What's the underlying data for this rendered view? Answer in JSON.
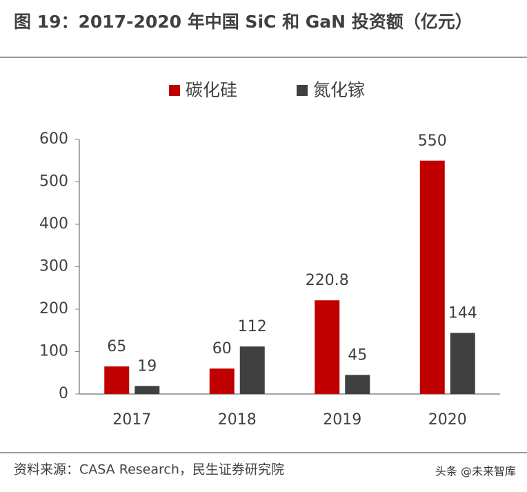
{
  "chart_data": {
    "type": "bar",
    "title": "图 19：2017-2020 年中国 SiC 和 GaN 投资额（亿元）",
    "categories": [
      "2017",
      "2018",
      "2019",
      "2020"
    ],
    "series": [
      {
        "name": "碳化硅",
        "color": "#c00000",
        "values": [
          65,
          60,
          220.8,
          550
        ]
      },
      {
        "name": "氮化镓",
        "color": "#404040",
        "values": [
          19,
          112,
          45,
          144
        ]
      }
    ],
    "ylim": [
      0,
      600
    ],
    "yticks": [
      0,
      100,
      200,
      300,
      400,
      500,
      600
    ],
    "legend": "top",
    "grid": false,
    "source": "资料来源：CASA Research，民生证券研究院",
    "watermark": "头条 @未来智库"
  }
}
